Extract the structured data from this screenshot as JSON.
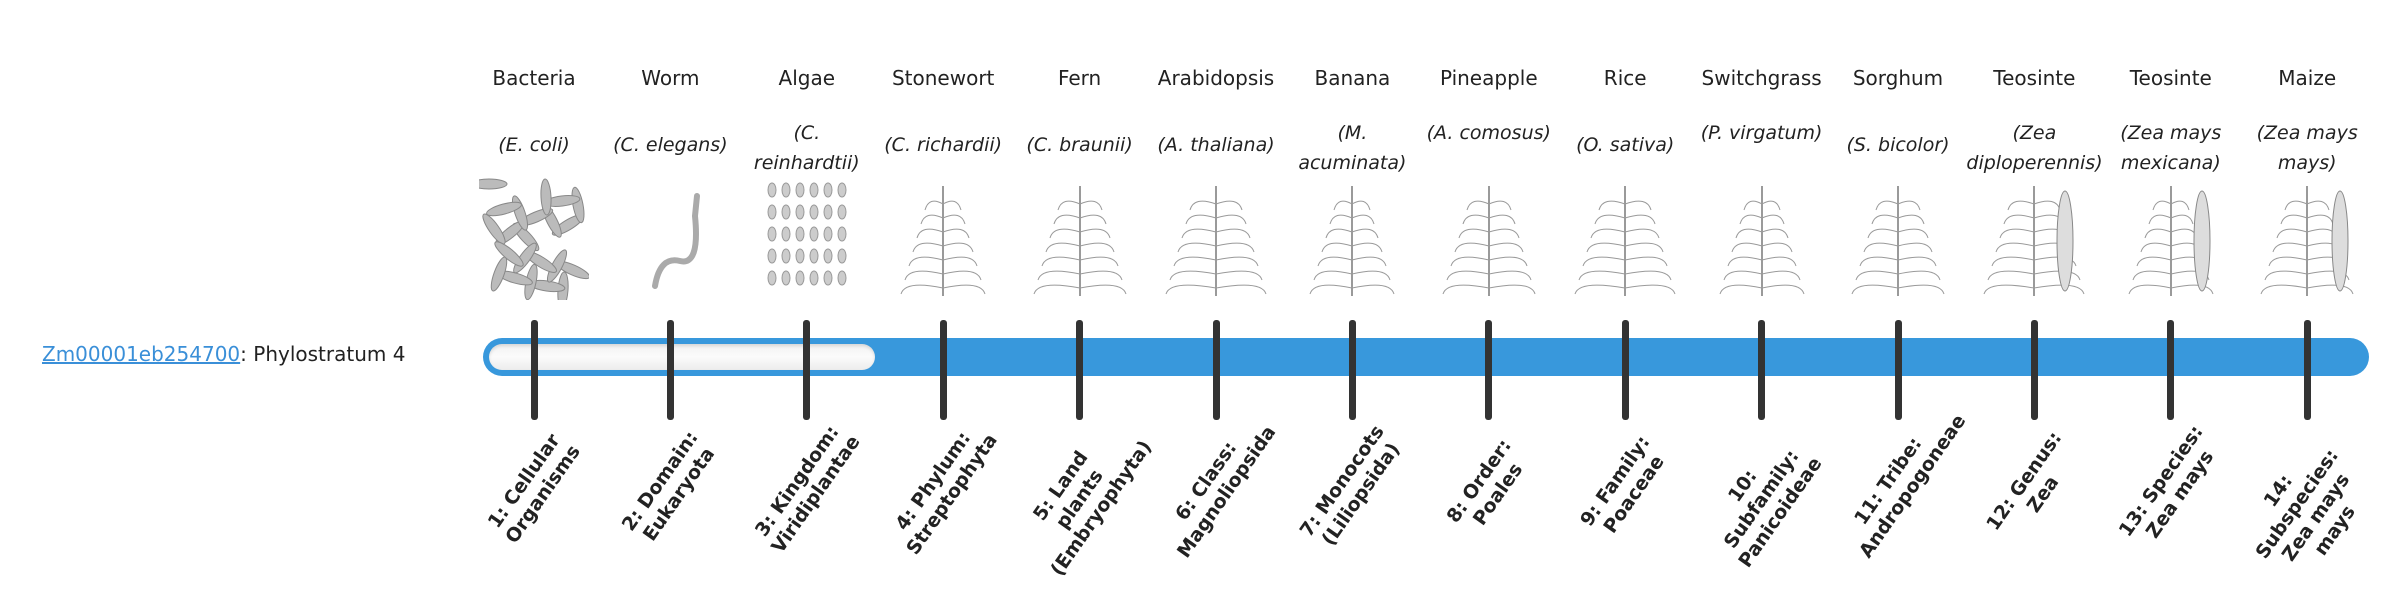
{
  "gene": {
    "id": "Zm00001eb254700",
    "suffix": ": Phylostratum 4"
  },
  "phylostratum": 4,
  "colors": {
    "bar": "#3898dc",
    "tick": "#333333",
    "link": "#3a8fd8"
  },
  "organisms": [
    {
      "common": "Bacteria",
      "species": "(E. coli)",
      "icon": "bacteria-illustration"
    },
    {
      "common": "Worm",
      "species": "(C. elegans)",
      "icon": "worm-illustration"
    },
    {
      "common": "Algae",
      "species": "(C. reinhardtii)",
      "icon": "algae-illustration"
    },
    {
      "common": "Stonewort",
      "species": "(C. richardii)",
      "icon": "stonewort-illustration"
    },
    {
      "common": "Fern",
      "species": "(C. braunii)",
      "icon": "fern-illustration"
    },
    {
      "common": "Arabidopsis",
      "species": "(A. thaliana)",
      "icon": "arabidopsis-illustration"
    },
    {
      "common": "Banana",
      "species": "(M. acuminata)",
      "icon": "banana-illustration"
    },
    {
      "common": "Pineapple",
      "species": "(A. comosus)",
      "icon": "pineapple-illustration"
    },
    {
      "common": "Rice",
      "species": "(O. sativa)",
      "icon": "rice-illustration"
    },
    {
      "common": "Switchgrass",
      "species": "(P. virgatum)",
      "icon": "switchgrass-illustration"
    },
    {
      "common": "Sorghum",
      "species": "(S. bicolor)",
      "icon": "sorghum-illustration"
    },
    {
      "common": "Teosinte",
      "species": "(Zea diploperennis)",
      "icon": "teosinte-illustration"
    },
    {
      "common": "Teosinte",
      "species": "(Zea mays mexicana)",
      "icon": "teosinte-illustration"
    },
    {
      "common": "Maize",
      "species": "(Zea mays mays)",
      "icon": "maize-illustration"
    }
  ],
  "strata": [
    "1: Cellular Organisms",
    "2: Domain: Eukaryota",
    "3: Kingdom: Viridiplantae",
    "4: Phylum: Streptophyta",
    "5: Land plants (Embryophyta)",
    "6: Class: Magnoliopsida",
    "7: Monocots (Liliopsida)",
    "8: Order: Poales",
    "9: Family: Poaceae",
    "10: Subfamily: Panicoideae",
    "11: Tribe: Andropogoneae",
    "12: Genus: Zea",
    "13: Species: Zea mays",
    "14: Subspecies: Zea mays mays"
  ]
}
